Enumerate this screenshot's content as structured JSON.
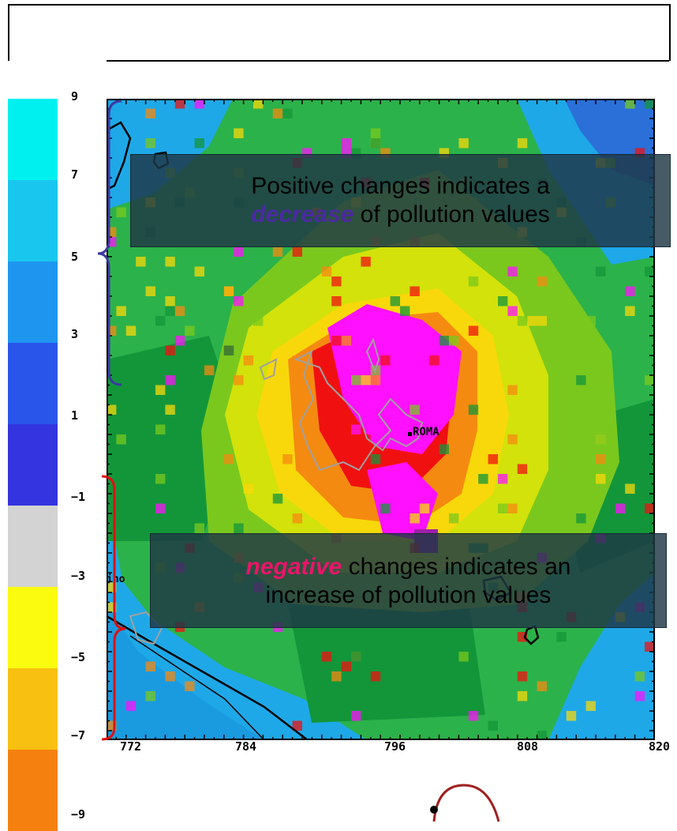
{
  "colorbar": {
    "labels": [
      "9",
      "7",
      "5",
      "3",
      "1",
      "−1",
      "−3",
      "−5",
      "−7",
      "−9"
    ],
    "colors": [
      "#00f0f0",
      "#19c6ee",
      "#1e96f0",
      "#2a55ea",
      "#3434e0",
      "#d3d3d3",
      "#fbfb10",
      "#f8c010",
      "#f58010",
      "#f51010"
    ]
  },
  "map": {
    "city_label": "ROMA",
    "fragment_label": "ino",
    "x_ticks": [
      "772",
      "784",
      "796",
      "808",
      "820"
    ],
    "palette": {
      "sea_light": "#1ea8e8",
      "sea_dark": "#2a70d8",
      "green_dark": "#13963a",
      "green": "#2cb24a",
      "green_light": "#7ac81e",
      "yellow_green": "#d2e20a",
      "yellow": "#f8d80a",
      "orange": "#f58a10",
      "red": "#f01010",
      "magenta": "#ff10ff",
      "purple": "#a020a8"
    }
  },
  "annotations": {
    "positive": {
      "line1": "Positive changes indicates a",
      "emph": "decrease",
      "rest": " of pollution values"
    },
    "negative": {
      "emph": "negative",
      "rest": " changes indicates an",
      "line2": "increase of pollution values"
    }
  },
  "colors": {
    "positive_bracket": "#3a3aa0",
    "negative_bracket": "#e01010",
    "cursor_arc": "#a02020"
  }
}
